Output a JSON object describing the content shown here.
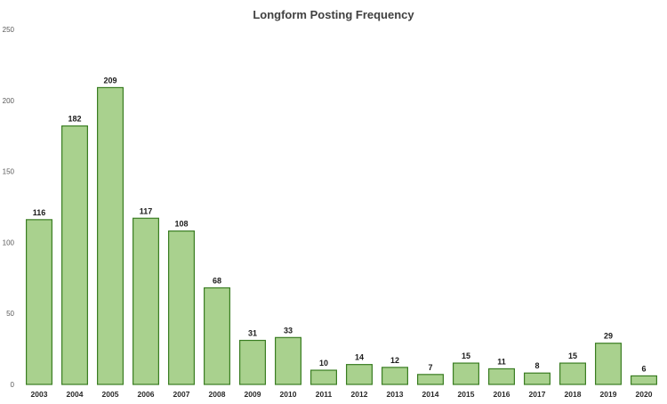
{
  "chart_data": {
    "type": "bar",
    "title": "Longform Posting Frequency",
    "xlabel": "",
    "ylabel": "",
    "categories": [
      "2003",
      "2004",
      "2005",
      "2006",
      "2007",
      "2008",
      "2009",
      "2010",
      "2011",
      "2012",
      "2013",
      "2014",
      "2015",
      "2016",
      "2017",
      "2018",
      "2019",
      "2020"
    ],
    "values": [
      116,
      182,
      209,
      117,
      108,
      68,
      31,
      33,
      10,
      14,
      12,
      7,
      15,
      11,
      8,
      15,
      29,
      6
    ],
    "ylim": [
      0,
      250
    ],
    "yticks": [
      0,
      50,
      100,
      150,
      200,
      250
    ],
    "grid": false,
    "legend": "none",
    "data_labels": true,
    "bar_fill": "#a9d18e",
    "bar_stroke": "#3a7d22"
  }
}
